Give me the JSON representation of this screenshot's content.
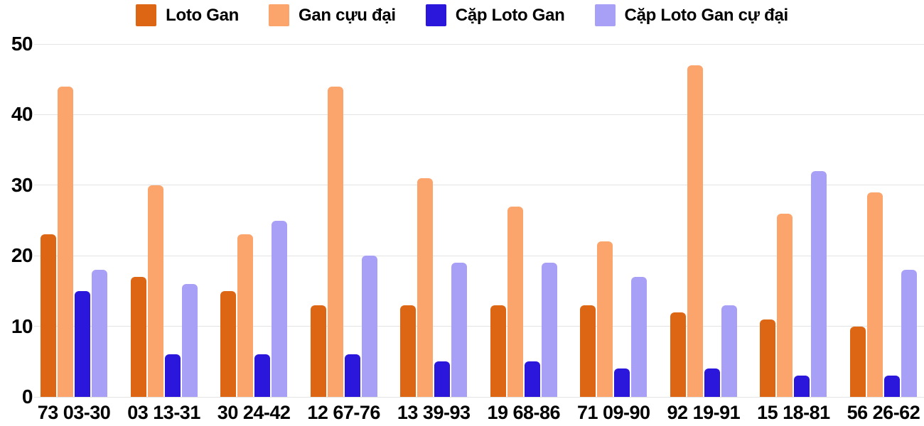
{
  "chart_data": {
    "type": "bar",
    "title": "",
    "xlabel": "",
    "ylabel": "",
    "ylim": [
      0,
      50
    ],
    "yticks": [
      0,
      10,
      20,
      30,
      40,
      50
    ],
    "grid": true,
    "legend_position": "top-center",
    "categories": [
      "73 03-30",
      "03 13-31",
      "30 24-42",
      "12 67-76",
      "13 39-93",
      "19 68-86",
      "71 09-90",
      "92 19-91",
      "15 18-81",
      "56 26-62"
    ],
    "series": [
      {
        "name": "Loto Gan",
        "color": "#dd6614",
        "values": [
          23,
          17,
          15,
          13,
          13,
          13,
          13,
          12,
          11,
          10
        ]
      },
      {
        "name": "Gan cựu đại",
        "color": "#fba46c",
        "values": [
          44,
          30,
          23,
          44,
          31,
          27,
          22,
          47,
          26,
          29
        ]
      },
      {
        "name": "Cặp Loto Gan",
        "color": "#2b16db",
        "values": [
          15,
          6,
          6,
          6,
          5,
          5,
          4,
          4,
          3,
          3
        ]
      },
      {
        "name": "Cặp Loto Gan cự đại",
        "color": "#a8a0f6",
        "values": [
          18,
          16,
          25,
          20,
          19,
          19,
          17,
          13,
          32,
          18
        ]
      }
    ]
  },
  "colors": {
    "background": "#ffffff",
    "gridline": "#e3e3e3",
    "text": "#000000"
  }
}
